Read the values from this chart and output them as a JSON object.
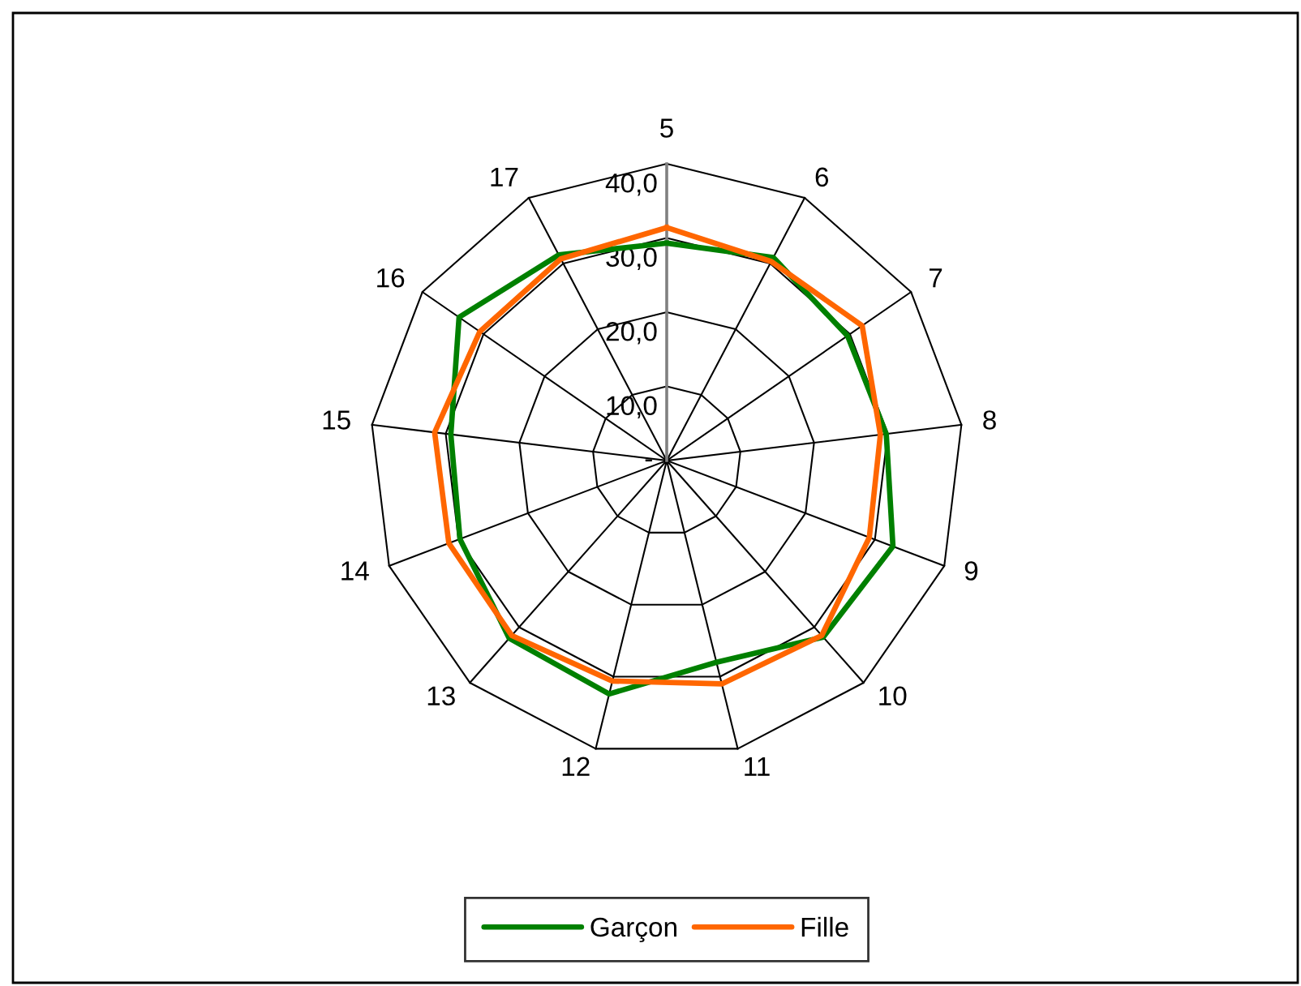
{
  "chart_data": {
    "type": "radar",
    "categories": [
      "5",
      "6",
      "7",
      "8",
      "9",
      "10",
      "11",
      "12",
      "13",
      "14",
      "15",
      "16",
      "17"
    ],
    "series": [
      {
        "name": "Garçon",
        "color": "#008000",
        "values": [
          29.3,
          30.9,
          29.6,
          29.8,
          32.6,
          31.8,
          28.0,
          32.4,
          32.0,
          29.8,
          29.3,
          34.0,
          31.3
        ]
      },
      {
        "name": "Fille",
        "color": "#ff6600",
        "values": [
          31.4,
          30.3,
          32.0,
          29.0,
          29.2,
          31.5,
          31.0,
          30.6,
          31.5,
          31.4,
          31.5,
          30.6,
          30.7
        ]
      }
    ],
    "ylim": [
      0,
      40
    ],
    "yticks": [
      {
        "value": 0,
        "label": "-"
      },
      {
        "value": 10,
        "label": "10,0"
      },
      {
        "value": 20,
        "label": "20,0"
      },
      {
        "value": 30,
        "label": "30,0"
      },
      {
        "value": 40,
        "label": "40,0"
      }
    ],
    "grid": true,
    "legend": "bottom"
  }
}
